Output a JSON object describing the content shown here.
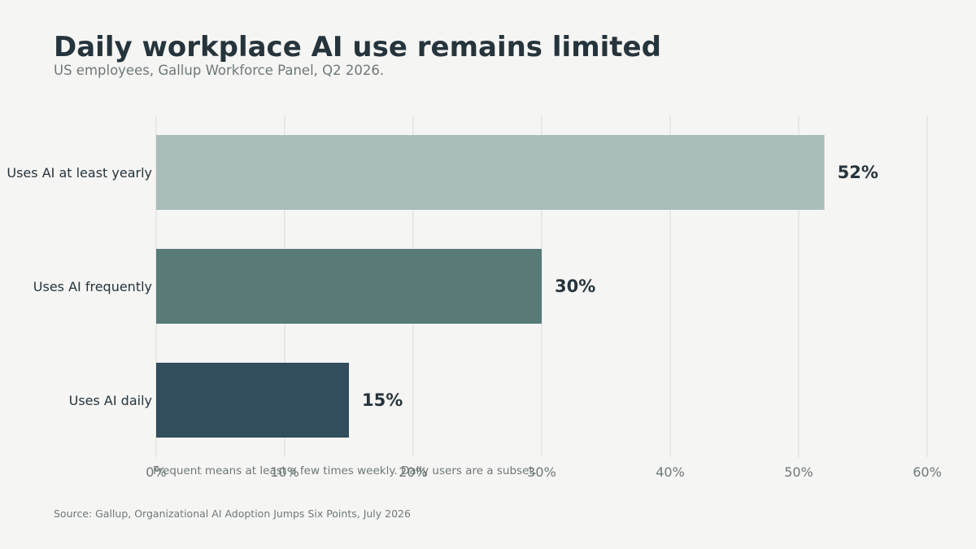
{
  "title": "Daily workplace AI use remains limited",
  "subtitle": "US employees, Gallup Workforce Panel, Q2 2026.",
  "footnote": "Frequent means at least a few times weekly. Daily users are a subset.",
  "source": "Source: Gallup, Organizational AI Adoption Jumps Six Points, July 2026",
  "chart_data": {
    "type": "bar",
    "orientation": "horizontal",
    "categories": [
      "Uses AI at least yearly",
      "Uses AI frequently",
      "Uses AI daily"
    ],
    "values": [
      52,
      30,
      15
    ],
    "data_labels": [
      "52%",
      "30%",
      "15%"
    ],
    "bar_colors": [
      "#a9bebb",
      "#587b77",
      "#324d5c"
    ],
    "xlim": [
      0,
      60
    ],
    "x_ticks": [
      0,
      10,
      20,
      30,
      40,
      50,
      60
    ],
    "x_tick_labels": [
      "0%",
      "10%",
      "20%",
      "30%",
      "40%",
      "50%",
      "60%"
    ],
    "grid": true,
    "xlabel": "",
    "ylabel": ""
  }
}
